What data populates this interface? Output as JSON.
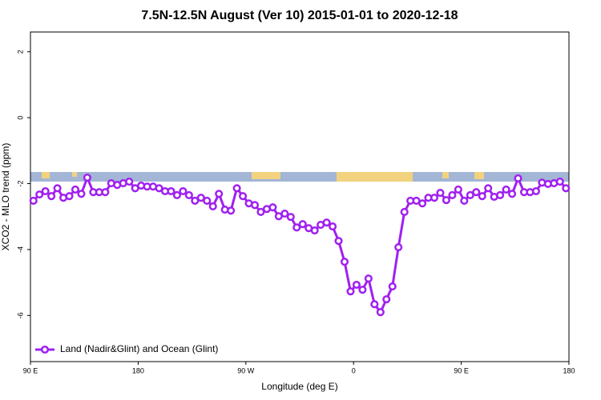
{
  "chart_data": {
    "type": "line",
    "title": "7.5N-12.5N August (Ver 10)   2015-01-01 to 2020-12-18",
    "x_label": "Longitude (deg E)",
    "y_label": "XCO2 - MLO trend (ppm)",
    "x": [
      92.5,
      97.5,
      102.5,
      107.5,
      112.5,
      117.5,
      122.5,
      127.5,
      132.5,
      137.5,
      142.5,
      147.5,
      152.5,
      157.5,
      162.5,
      167.5,
      172.5,
      177.5,
      182.5,
      187.5,
      192.5,
      197.5,
      202.5,
      207.5,
      212.5,
      217.5,
      222.5,
      227.5,
      232.5,
      237.5,
      242.5,
      247.5,
      252.5,
      257.5,
      262.5,
      267.5,
      272.5,
      277.5,
      282.5,
      287.5,
      292.5,
      297.5,
      302.5,
      307.5,
      312.5,
      317.5,
      322.5,
      327.5,
      332.5,
      337.5,
      342.5,
      347.5,
      352.5,
      357.5,
      362.5,
      367.5,
      372.5,
      377.5,
      382.5,
      387.5,
      392.5,
      397.5,
      402.5,
      407.5,
      412.5,
      417.5,
      422.5,
      427.5,
      432.5,
      437.5,
      442.5,
      447.5,
      452.5,
      457.5,
      462.5,
      467.5,
      472.5,
      477.5,
      482.5,
      487.5,
      492.5,
      497.5,
      502.5,
      507.5,
      512.5,
      517.5,
      522.5,
      527.5,
      532.5,
      537.5
    ],
    "series": [
      {
        "name": "Land (Nadir&Glint) and Ocean (Glint)",
        "color": "#a020f0",
        "values": [
          -2.52,
          -2.33,
          -2.23,
          -2.38,
          -2.14,
          -2.43,
          -2.38,
          -2.18,
          -2.31,
          -1.82,
          -2.26,
          -2.26,
          -2.26,
          -1.99,
          -2.04,
          -1.99,
          -1.94,
          -2.14,
          -2.06,
          -2.09,
          -2.09,
          -2.14,
          -2.23,
          -2.23,
          -2.35,
          -2.23,
          -2.35,
          -2.52,
          -2.43,
          -2.52,
          -2.69,
          -2.31,
          -2.79,
          -2.82,
          -2.14,
          -2.38,
          -2.6,
          -2.65,
          -2.86,
          -2.77,
          -2.72,
          -2.99,
          -2.91,
          -3.01,
          -3.33,
          -3.23,
          -3.35,
          -3.42,
          -3.25,
          -3.18,
          -3.3,
          -3.74,
          -4.37,
          -5.27,
          -5.07,
          -5.22,
          -4.88,
          -5.66,
          -5.9,
          -5.51,
          -5.12,
          -3.93,
          -2.86,
          -2.52,
          -2.52,
          -2.6,
          -2.43,
          -2.43,
          -2.28,
          -2.5,
          -2.35,
          -2.18,
          -2.52,
          -2.35,
          -2.26,
          -2.38,
          -2.14,
          -2.4,
          -2.35,
          -2.18,
          -2.31,
          -1.84,
          -2.26,
          -2.26,
          -2.23,
          -1.97,
          -2.01,
          -1.99,
          -1.94,
          -2.14
        ]
      }
    ],
    "xlim": [
      90,
      540
    ],
    "xticks": [
      {
        "value": 90,
        "label": "90 E"
      },
      {
        "value": 180,
        "label": "180"
      },
      {
        "value": 270,
        "label": "90 W"
      },
      {
        "value": 360,
        "label": "0"
      },
      {
        "value": 450,
        "label": "90 E"
      },
      {
        "value": 540,
        "label": "180"
      }
    ],
    "ylim": [
      -7.4,
      2.6
    ],
    "yticks": [
      -6,
      -4,
      -2,
      0,
      2
    ],
    "grid": false,
    "legend": "bottom-left"
  }
}
